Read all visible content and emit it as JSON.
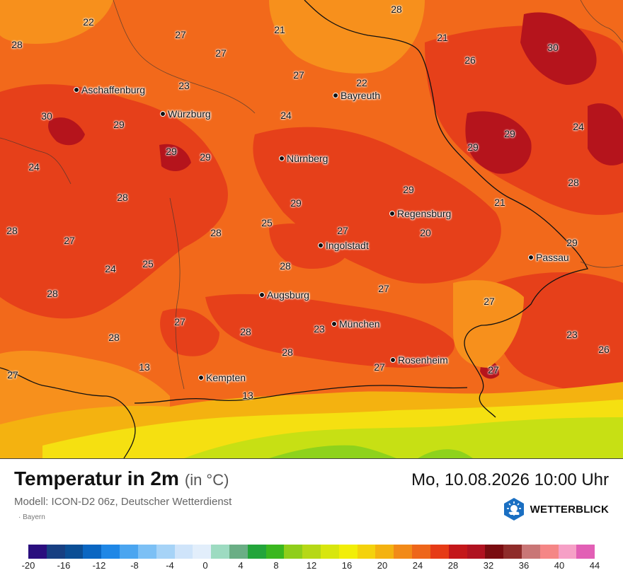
{
  "title": "Temperatur in 2m",
  "unit": "(in °C)",
  "datetime": "Mo, 10.08.2026 10:00 Uhr",
  "model": "Modell: ICON-D2 06z, Deutscher Wetterdienst",
  "region": "· Bayern",
  "brand": "WETTERBLICK",
  "colors": {
    "very_hot": "#b5141c",
    "hot": "#e6401a",
    "warm": "#f2691b",
    "mild": "#f7901c",
    "yellow": "#f5e011",
    "lime": "#c7e014",
    "green": "#8ed21c"
  },
  "cities": [
    {
      "name": "Aschaffenburg"
    },
    {
      "name": "Würzburg"
    },
    {
      "name": "Bayreuth"
    },
    {
      "name": "Nürnberg"
    },
    {
      "name": "Regensburg"
    },
    {
      "name": "Ingolstadt"
    },
    {
      "name": "Passau"
    },
    {
      "name": "Augsburg"
    },
    {
      "name": "München"
    },
    {
      "name": "Rosenheim"
    },
    {
      "name": "Kempten"
    }
  ],
  "values": [
    "28",
    "22",
    "27",
    "21",
    "27",
    "21",
    "26",
    "30",
    "28",
    "23",
    "27",
    "22",
    "30",
    "29",
    "24",
    "29",
    "24",
    "29",
    "29",
    "29",
    "24",
    "28",
    "21",
    "29",
    "29",
    "28",
    "28",
    "25",
    "27",
    "20",
    "29",
    "28",
    "27",
    "25",
    "28",
    "24",
    "27",
    "28",
    "27",
    "27",
    "28",
    "23",
    "28",
    "28",
    "23",
    "26",
    "13",
    "27",
    "27",
    "27",
    "13"
  ],
  "scale": {
    "ticks": [
      "-20",
      "-16",
      "-12",
      "-8",
      "-4",
      "0",
      "4",
      "8",
      "12",
      "16",
      "20",
      "24",
      "28",
      "32",
      "36",
      "40",
      "44"
    ],
    "colors": [
      "#2a0e7e",
      "#173f82",
      "#0b4e95",
      "#0a66c2",
      "#1f87e6",
      "#4aa5f0",
      "#7cc0f5",
      "#a6d3f7",
      "#cfe4fa",
      "#e2eefb",
      "#9ddbc1",
      "#6aae85",
      "#23a53b",
      "#3ab71f",
      "#8fce1a",
      "#b6d816",
      "#d8e60e",
      "#f2ee08",
      "#f4d20c",
      "#f4b210",
      "#f28a18",
      "#ee661a",
      "#e63b16",
      "#c4171a",
      "#b01220",
      "#7a0c10",
      "#8f2c2a",
      "#c97676",
      "#f58686",
      "#f6a0c6",
      "#e25fb5"
    ]
  }
}
